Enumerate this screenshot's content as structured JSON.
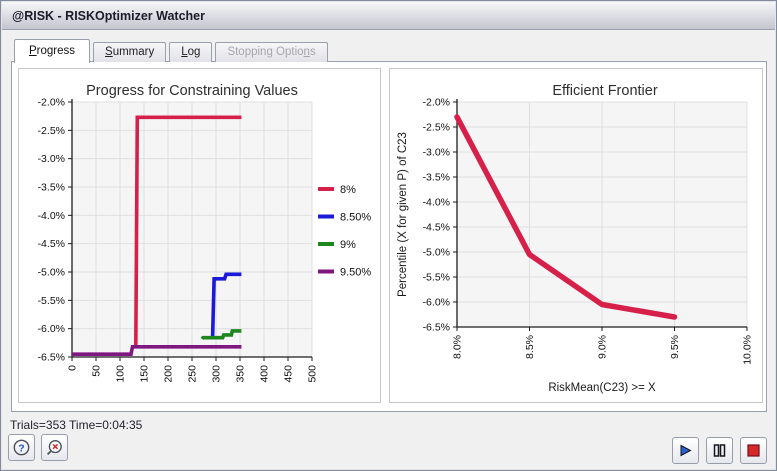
{
  "window_title": "@RISK - RISKOptimizer Watcher",
  "tabs": [
    {
      "label": "Progress",
      "accel_index": 0,
      "state": "active"
    },
    {
      "label": "Summary",
      "accel_index": 0,
      "state": "normal"
    },
    {
      "label": "Log",
      "accel_index": 0,
      "state": "normal"
    },
    {
      "label": "Stopping Options",
      "accel_index": 14,
      "state": "disabled"
    }
  ],
  "status_text": "Trials=353 Time=0:04:35",
  "toolbar_icons": {
    "bottom_left": [
      "help-icon",
      "magnifier-close-icon"
    ],
    "bottom_right": [
      "play-icon",
      "pause-icon",
      "stop-icon"
    ]
  },
  "colors": {
    "series_red": "#d62049",
    "series_blue": "#1a1ad8",
    "series_green": "#1d861d",
    "series_purple": "#801780",
    "play_blue": "#2b5fd0",
    "stop_red": "#d62828",
    "help_blue": "#2255cc",
    "plot_bg": "#f5f5f6",
    "grid": "#dfdfe2"
  },
  "chart_data": [
    {
      "type": "line",
      "title": "Progress for Constraining Values",
      "xlabel": "",
      "ylabel": "",
      "xlim": [
        0,
        500
      ],
      "ylim": [
        -6.5,
        -2.0
      ],
      "grid": true,
      "legend_position": "right",
      "x_ticks": [
        0,
        50,
        100,
        150,
        200,
        250,
        300,
        350,
        400,
        450,
        500
      ],
      "x_tick_labels": [
        "0",
        "50",
        "100",
        "150",
        "200",
        "250",
        "300",
        "350",
        "400",
        "450",
        "500"
      ],
      "y_ticks": [
        -2.0,
        -2.5,
        -3.0,
        -3.5,
        -4.0,
        -4.5,
        -5.0,
        -5.5,
        -6.0,
        -6.5
      ],
      "y_tick_labels": [
        "-2.0%",
        "-2.5%",
        "-3.0%",
        "-3.5%",
        "-4.0%",
        "-4.5%",
        "-5.0%",
        "-5.5%",
        "-6.0%",
        "-6.5%"
      ],
      "series": [
        {
          "name": "8%",
          "color": "#d62049",
          "line_width": 3.6,
          "points": [
            [
              133,
              -6.31
            ],
            [
              136,
              -2.27
            ],
            [
              353,
              -2.27
            ]
          ]
        },
        {
          "name": "8.50%",
          "color": "#1a1ad8",
          "line_width": 3.6,
          "points": [
            [
              293,
              -6.16
            ],
            [
              296,
              -5.12
            ],
            [
              318,
              -5.12
            ],
            [
              321,
              -5.04
            ],
            [
              353,
              -5.04
            ]
          ]
        },
        {
          "name": "9%",
          "color": "#1d861d",
          "line_width": 3.6,
          "points": [
            [
              271,
              -6.18
            ],
            [
              273,
              -6.16
            ],
            [
              314,
              -6.16
            ],
            [
              316,
              -6.11
            ],
            [
              332,
              -6.11
            ],
            [
              334,
              -6.04
            ],
            [
              353,
              -6.04
            ]
          ]
        },
        {
          "name": "9.50%",
          "color": "#801780",
          "line_width": 3.6,
          "points": [
            [
              0,
              -6.45
            ],
            [
              123,
              -6.45
            ],
            [
              126,
              -6.32
            ],
            [
              353,
              -6.32
            ]
          ]
        }
      ]
    },
    {
      "type": "line",
      "title": "Efficient Frontier",
      "xlabel": "RiskMean(C23) >= X",
      "ylabel": "Percentile (X for given P) of C23",
      "xlim": [
        8.0,
        10.0
      ],
      "ylim": [
        -6.5,
        -2.0
      ],
      "grid": true,
      "legend_position": "none",
      "x_ticks": [
        8.0,
        8.5,
        9.0,
        9.5,
        10.0
      ],
      "x_tick_labels": [
        "8.0%",
        "8.5%",
        "9.0%",
        "9.5%",
        "10.0%"
      ],
      "y_ticks": [
        -2.0,
        -2.5,
        -3.0,
        -3.5,
        -4.0,
        -4.5,
        -5.0,
        -5.5,
        -6.0,
        -6.5
      ],
      "y_tick_labels": [
        "-2.0%",
        "-2.5%",
        "-3.0%",
        "-3.5%",
        "-4.0%",
        "-4.5%",
        "-5.0%",
        "-5.5%",
        "-6.0%",
        "-6.5%"
      ],
      "series": [
        {
          "name": "Efficient Frontier",
          "color": "#d62049",
          "line_width": 5.5,
          "round": true,
          "points": [
            [
              8.0,
              -2.3
            ],
            [
              8.5,
              -5.05
            ],
            [
              9.0,
              -6.05
            ],
            [
              9.5,
              -6.3
            ]
          ]
        }
      ]
    }
  ]
}
